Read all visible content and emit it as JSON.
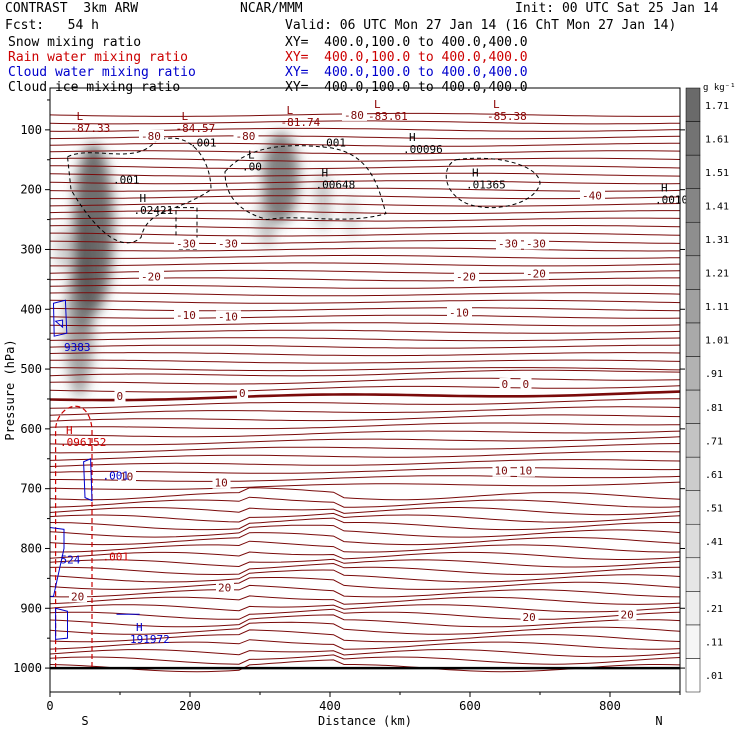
{
  "header": {
    "model": "CONTRAST  3km ARW",
    "center": "NCAR/MMM",
    "init": "Init: 00 UTC Sat 25 Jan 14",
    "fcst": "Fcst:   54 h",
    "valid": "Valid: 06 UTC Mon 27 Jan 14 (16 ChT Mon 27 Jan 14)"
  },
  "legend": [
    {
      "label": "Snow mixing ratio",
      "xy": "XY=  400.0,100.0 to 400.0,400.0",
      "color": "#000000"
    },
    {
      "label": "Rain water mixing ratio",
      "xy": "XY=  400.0,100.0 to 400.0,400.0",
      "color": "#cc0000"
    },
    {
      "label": "Cloud water mixing ratio",
      "xy": "XY=  400.0,100.0 to 400.0,400.0",
      "color": "#0000cc"
    },
    {
      "label": "Cloud ice mixing ratio",
      "xy": "XY=  400.0,100.0 to 400.0,400.0",
      "color": "#000000"
    }
  ],
  "chart_data": {
    "type": "cross-section",
    "xlabel": "Distance (km)",
    "ylabel": "Pressure (hPa)",
    "xlim": [
      0,
      900
    ],
    "ylim": [
      1040,
      30
    ],
    "xticks": [
      0,
      200,
      400,
      600,
      800
    ],
    "yticks": [
      100,
      200,
      300,
      400,
      500,
      600,
      700,
      800,
      900,
      1000
    ],
    "end_labels": {
      "left": "S",
      "right": "N"
    },
    "colorbar": {
      "unit": "g kg⁻¹",
      "levels": [
        ".01",
        ".11",
        ".21",
        ".31",
        ".41",
        ".51",
        ".61",
        ".71",
        ".81",
        ".91",
        "1.01",
        "1.11",
        "1.21",
        "1.31",
        "1.41",
        "1.51",
        "1.61",
        "1.71"
      ],
      "colors": [
        "#ffffff",
        "#f6f6f6",
        "#eeeeee",
        "#e6e6e6",
        "#dddddd",
        "#d5d5d5",
        "#cccccc",
        "#c3c3c3",
        "#bbbbbb",
        "#b2b2b2",
        "#a9a9a9",
        "#a0a0a0",
        "#979797",
        "#8e8e8e",
        "#858585",
        "#7c7c7c",
        "#737373",
        "#6a6a6a"
      ]
    },
    "snow_cores": [
      {
        "x": 60,
        "p": 250,
        "value": 1.4
      },
      {
        "x": 40,
        "p": 420,
        "value": 0.9
      },
      {
        "x": 330,
        "p": 170,
        "value": 0.9
      },
      {
        "x": 390,
        "p": 220,
        "value": 0.5
      }
    ],
    "temperature_contours": [
      {
        "value": "-40",
        "p": 225
      },
      {
        "value": "-30",
        "p": 288
      },
      {
        "value": "-20",
        "p": 333
      },
      {
        "value": "-10",
        "p": 405
      },
      {
        "value": "0",
        "p": 545
      },
      {
        "value": "10",
        "p": 678
      },
      {
        "value": "20",
        "p": 875
      }
    ],
    "temperature_labels": [
      {
        "text": "-80",
        "x": 130,
        "p": 110
      },
      {
        "text": "-80",
        "x": 265,
        "p": 110
      },
      {
        "text": "-80",
        "x": 420,
        "p": 75
      },
      {
        "text": "-40",
        "x": 760,
        "p": 210
      },
      {
        "text": "-30",
        "x": 180,
        "p": 290
      },
      {
        "text": "-30",
        "x": 240,
        "p": 290
      },
      {
        "text": "-30",
        "x": 640,
        "p": 290
      },
      {
        "text": "-30",
        "x": 680,
        "p": 290
      },
      {
        "text": "-20",
        "x": 130,
        "p": 345
      },
      {
        "text": "-20",
        "x": 580,
        "p": 345
      },
      {
        "text": "-20",
        "x": 680,
        "p": 340
      },
      {
        "text": "-10",
        "x": 180,
        "p": 410
      },
      {
        "text": "-10",
        "x": 240,
        "p": 412
      },
      {
        "text": "-10",
        "x": 570,
        "p": 405
      },
      {
        "text": "0",
        "x": 95,
        "p": 545
      },
      {
        "text": "0",
        "x": 270,
        "p": 540
      },
      {
        "text": "0",
        "x": 645,
        "p": 525
      },
      {
        "text": "0",
        "x": 675,
        "p": 525
      },
      {
        "text": "10",
        "x": 100,
        "p": 680
      },
      {
        "text": "10",
        "x": 235,
        "p": 690
      },
      {
        "text": "10",
        "x": 635,
        "p": 670
      },
      {
        "text": "10",
        "x": 670,
        "p": 670
      },
      {
        "text": "20",
        "x": 30,
        "p": 880
      },
      {
        "text": "20",
        "x": 240,
        "p": 865
      },
      {
        "text": "20",
        "x": 675,
        "p": 915
      },
      {
        "text": "20",
        "x": 815,
        "p": 910
      }
    ],
    "extrema": [
      {
        "kind": "L",
        "value": "-87.33",
        "x": 35,
        "p": 100,
        "color": "#8b0000"
      },
      {
        "kind": "L",
        "value": "-84.57",
        "x": 185,
        "p": 100,
        "color": "#8b0000"
      },
      {
        "kind": "L",
        "value": "-81.74",
        "x": 335,
        "p": 90,
        "color": "#8b0000"
      },
      {
        "kind": "L",
        "value": "-83.61",
        "x": 460,
        "p": 80,
        "color": "#8b0000"
      },
      {
        "kind": "L",
        "value": "-85.38",
        "x": 630,
        "p": 80,
        "color": "#8b0000"
      },
      {
        "kind": "H",
        "value": ".00096",
        "x": 510,
        "p": 135,
        "color": "#000000"
      },
      {
        "kind": "H",
        "value": ".00648",
        "x": 385,
        "p": 195,
        "color": "#000000"
      },
      {
        "kind": "H",
        "value": ".01365",
        "x": 600,
        "p": 195,
        "color": "#000000"
      },
      {
        "kind": "H",
        "value": ".0010",
        "x": 870,
        "p": 220,
        "color": "#000000"
      },
      {
        "kind": "H",
        "value": ".02421",
        "x": 125,
        "p": 237,
        "color": "#000000"
      },
      {
        "kind": "L",
        "value": ".00",
        "x": 280,
        "p": 165,
        "color": "#000000"
      },
      {
        "kind": "H",
        "value": ".096152",
        "x": 20,
        "p": 625,
        "color": "#cc0000"
      },
      {
        "kind": "H",
        "value": "191972",
        "x": 120,
        "p": 955,
        "color": "#0000cc"
      }
    ],
    "ice_labels": [
      {
        "text": ".001",
        "x": 200,
        "p": 128
      },
      {
        "text": ".001",
        "x": 385,
        "p": 128
      },
      {
        "text": ".001",
        "x": 90,
        "p": 190
      }
    ],
    "rain_labels": [
      {
        "text": ".001",
        "x": 75,
        "p": 820
      }
    ],
    "cloud_water_labels": [
      {
        "text": "9383",
        "x": 20,
        "p": 470
      },
      {
        "text": ".001",
        "x": 75,
        "p": 685
      },
      {
        "text": "524",
        "x": 15,
        "p": 825
      }
    ]
  }
}
